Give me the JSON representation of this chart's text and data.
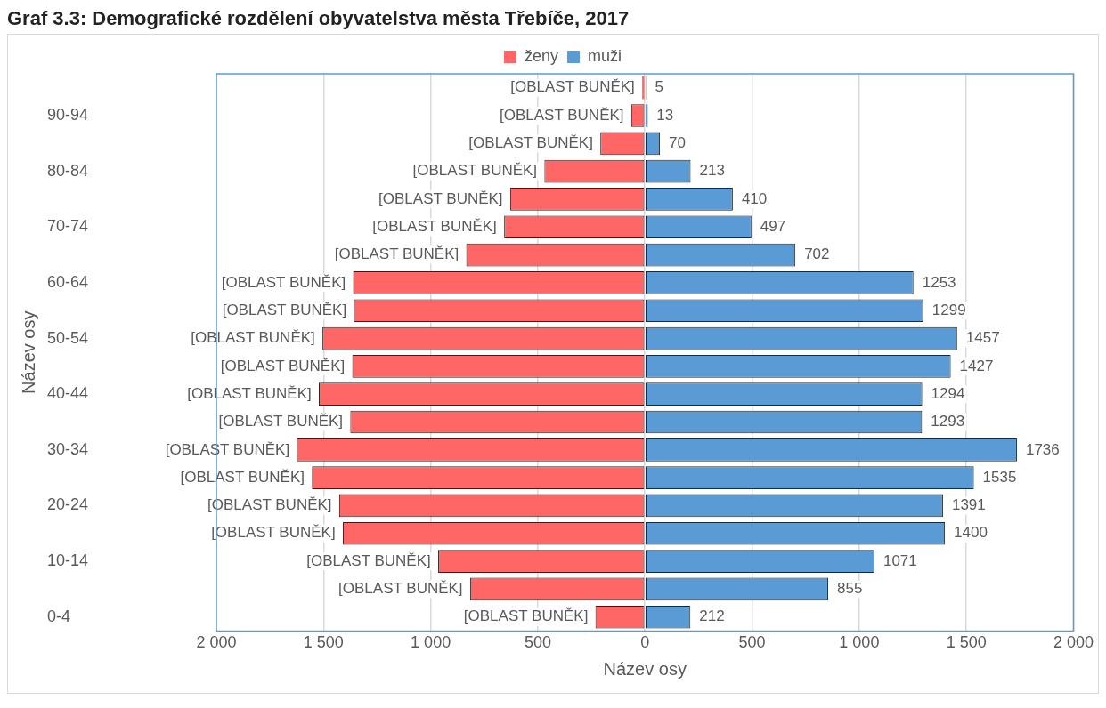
{
  "chart_data": {
    "type": "bar",
    "orientation": "horizontal",
    "stacked": true,
    "title": "Graf 3.3: Demografické rozdělení obyvatelstva města Třebíče, 2017",
    "xlabel": "Název osy",
    "ylabel": "Název osy",
    "categories": [
      null,
      "90-94",
      null,
      "80-84",
      null,
      "70-74",
      null,
      "60-64",
      null,
      "50-54",
      null,
      "40-44",
      null,
      "30-34",
      null,
      "20-24",
      null,
      "10-14",
      null,
      "0-4"
    ],
    "series": [
      {
        "name": "ženy",
        "color": "#ff6666",
        "values": [
          -13,
          -64,
          -208,
          -469,
          -629,
          -657,
          -834,
          -1362,
          -1358,
          -1505,
          -1366,
          -1522,
          -1375,
          -1624,
          -1554,
          -1427,
          -1410,
          -965,
          -816,
          -231
        ],
        "value_labels": [
          "[OBLAST BUNĚK]",
          "[OBLAST BUNĚK]",
          "[OBLAST BUNĚK]",
          "[OBLAST BUNĚK]",
          "[OBLAST BUNĚK]",
          "[OBLAST BUNĚK]",
          "[OBLAST BUNĚK]",
          "[OBLAST BUNĚK]",
          "[OBLAST BUNĚK]",
          "[OBLAST BUNĚK]",
          "[OBLAST BUNĚK]",
          "[OBLAST BUNĚK]",
          "[OBLAST BUNĚK]",
          "[OBLAST BUNĚK]",
          "[OBLAST BUNĚK]",
          "[OBLAST BUNĚK]",
          "[OBLAST BUNĚK]",
          "[OBLAST BUNĚK]",
          "[OBLAST BUNĚK]",
          "[OBLAST BUNĚK]"
        ]
      },
      {
        "name": "muži",
        "color": "#5b9bd5",
        "values": [
          5,
          13,
          70,
          213,
          410,
          497,
          702,
          1253,
          1299,
          1457,
          1427,
          1294,
          1293,
          1736,
          1535,
          1391,
          1400,
          1071,
          855,
          212
        ],
        "value_labels": [
          "5",
          "13",
          "70",
          "213",
          "410",
          "497",
          "702",
          "1253",
          "1299",
          "1457",
          "1427",
          "1294",
          "1293",
          "1736",
          "1535",
          "1391",
          "1400",
          "1071",
          "855",
          "212"
        ]
      }
    ],
    "xlim": [
      -2000,
      2000
    ],
    "xticks": [
      {
        "value": -2000,
        "label": "2 000"
      },
      {
        "value": -1500,
        "label": "1 500"
      },
      {
        "value": -1000,
        "label": "1 000"
      },
      {
        "value": -500,
        "label": "500"
      },
      0,
      500,
      {
        "value": 1000,
        "label": "1 000"
      },
      {
        "value": 1500,
        "label": "1 500"
      },
      {
        "value": 2000,
        "label": "2 000"
      }
    ],
    "grid": "x",
    "legend": "top"
  }
}
